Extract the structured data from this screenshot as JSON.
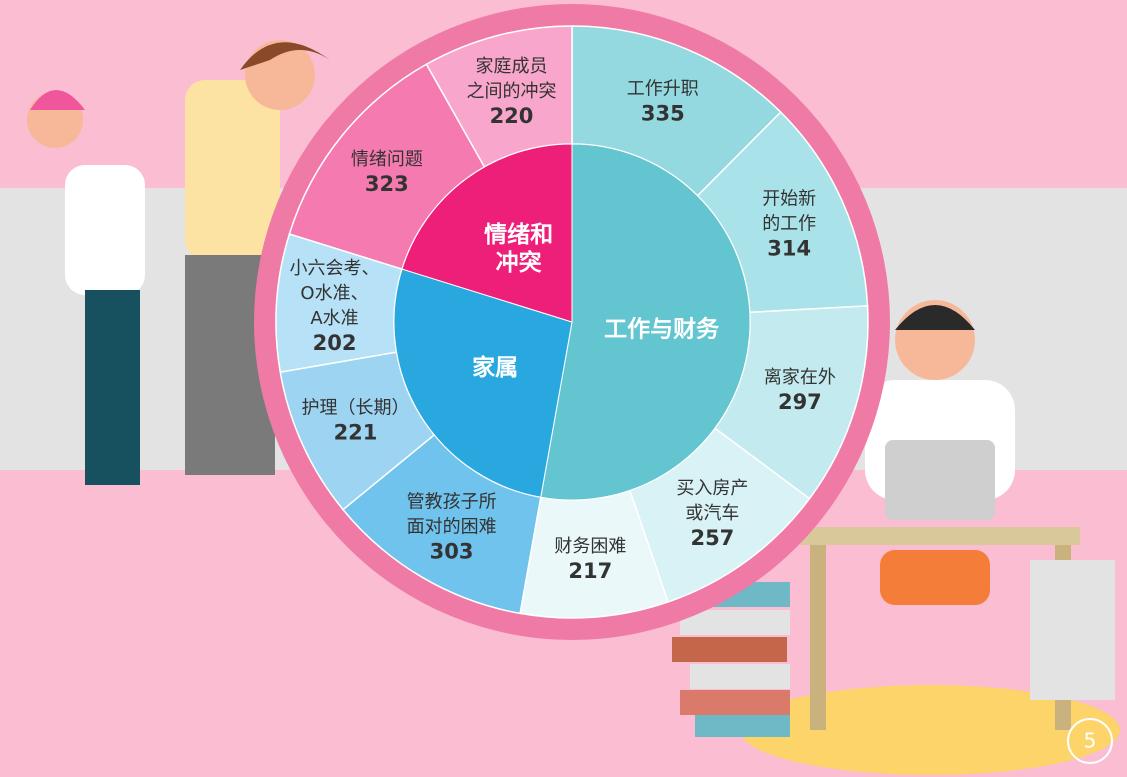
{
  "chart_data": {
    "type": "sunburst",
    "series": [
      {
        "name": [
          "工作与财务"
        ],
        "color": "#62c5d0",
        "categories": [
          [
            "工作升职"
          ],
          [
            "开始新",
            "的工作"
          ],
          [
            "离家在外"
          ],
          [
            "买入房产",
            "或汽车"
          ],
          [
            "财务困难"
          ]
        ],
        "values": [
          335,
          314,
          297,
          257,
          217
        ],
        "colors": [
          "#94d9e0",
          "#a9e2e8",
          "#c3ebef",
          "#d8f2f5",
          "#eaf8fa"
        ]
      },
      {
        "name": [
          "家属"
        ],
        "color": "#29a8e0",
        "categories": [
          [
            "管教孩子所",
            "面对的困难"
          ],
          [
            "护理（长期）"
          ],
          [
            "小六会考、",
            "O水准、",
            "A水准"
          ]
        ],
        "values": [
          303,
          221,
          202
        ],
        "colors": [
          "#70c3ec",
          "#9cd4f1",
          "#b7e1f6"
        ]
      },
      {
        "name": [
          "情绪和",
          "冲突"
        ],
        "color": "#ee1f78",
        "categories": [
          [
            "情绪问题"
          ],
          [
            "家庭成员",
            "之间的冲突"
          ]
        ],
        "values": [
          323,
          220
        ],
        "colors": [
          "#f57ab0",
          "#f8a6cc"
        ]
      }
    ]
  },
  "page_number": 5
}
